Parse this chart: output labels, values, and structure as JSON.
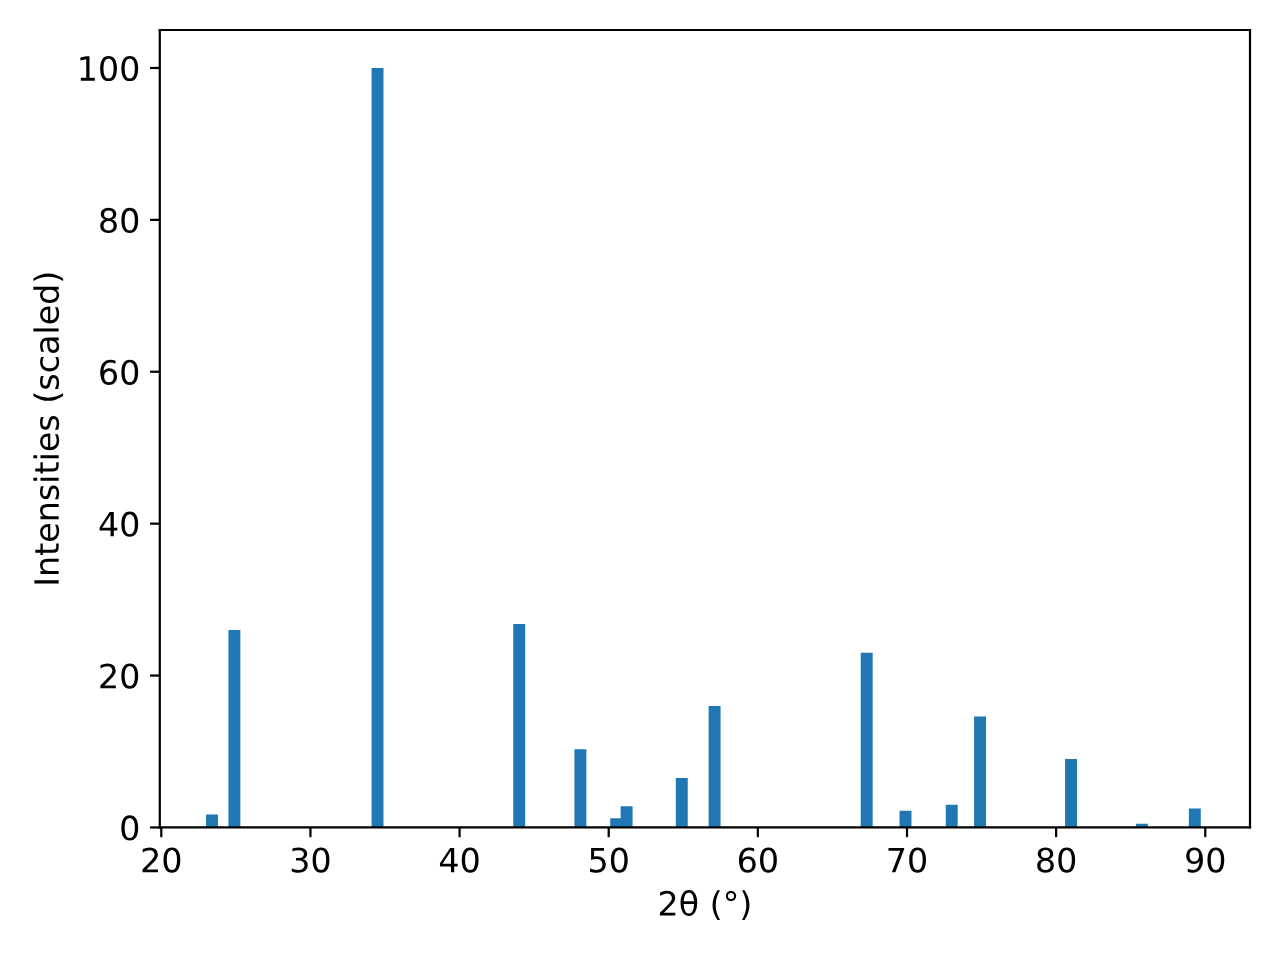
{
  "chart_data": {
    "type": "bar",
    "xlabel": "2θ (°)",
    "ylabel": "Intensities (scaled)",
    "x": [
      23.4,
      24.9,
      34.5,
      44.0,
      48.1,
      50.5,
      51.2,
      54.9,
      57.1,
      67.3,
      69.9,
      73.0,
      74.9,
      81.0,
      85.75,
      89.3
    ],
    "values": [
      1.7,
      26,
      100,
      26.8,
      10.3,
      1.2,
      2.8,
      6.5,
      16,
      23,
      2.2,
      3.0,
      14.6,
      9,
      0.5,
      2.5
    ],
    "color": "#1f77b4",
    "xlim": [
      19.9,
      93.0
    ],
    "xticks": [
      20,
      30,
      40,
      50,
      60,
      70,
      80,
      90
    ],
    "ylim": [
      0,
      105
    ],
    "yticks": [
      0,
      20,
      40,
      60,
      80,
      100
    ],
    "grid": false,
    "legend": false
  }
}
